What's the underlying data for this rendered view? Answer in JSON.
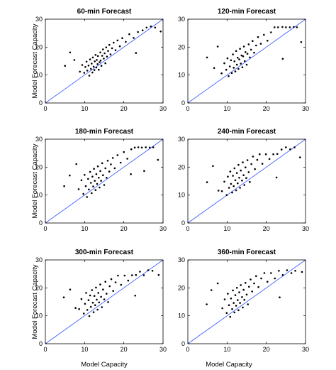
{
  "figure": {
    "ylabel": "Model Forecast Capacity",
    "xlabel": "Model Capacity"
  },
  "chart_data": [
    {
      "type": "scatter",
      "title": "60-min Forecast",
      "xlabel": "",
      "ylabel": "Model Forecast Capacity",
      "xlim": [
        0,
        30
      ],
      "ylim": [
        0,
        30
      ],
      "xticks": [
        "0",
        "10",
        "20",
        "30"
      ],
      "yticks": [
        "0",
        "10",
        "20",
        "30"
      ],
      "reference_line": "y = x",
      "point_color": "#000000",
      "line_color": "#3355ff",
      "points": [
        [
          8.8,
          11.2
        ],
        [
          9.4,
          13.6
        ],
        [
          9.9,
          10.8
        ],
        [
          10.2,
          12.9
        ],
        [
          10.5,
          14.8
        ],
        [
          10.7,
          11.6
        ],
        [
          11.0,
          13.4
        ],
        [
          11.2,
          9.8
        ],
        [
          11.4,
          15.6
        ],
        [
          11.6,
          12.2
        ],
        [
          11.8,
          14.1
        ],
        [
          12.0,
          10.9
        ],
        [
          12.1,
          16.3
        ],
        [
          12.3,
          13.0
        ],
        [
          12.5,
          11.8
        ],
        [
          12.6,
          14.9
        ],
        [
          12.8,
          17.2
        ],
        [
          13.0,
          12.7
        ],
        [
          13.1,
          15.4
        ],
        [
          13.3,
          13.9
        ],
        [
          13.4,
          16.8
        ],
        [
          13.6,
          11.9
        ],
        [
          13.8,
          14.6
        ],
        [
          14.0,
          18.1
        ],
        [
          14.1,
          15.2
        ],
        [
          14.3,
          13.3
        ],
        [
          14.5,
          16.9
        ],
        [
          14.7,
          19.2
        ],
        [
          14.9,
          15.9
        ],
        [
          15.1,
          17.8
        ],
        [
          15.3,
          14.2
        ],
        [
          15.5,
          19.9
        ],
        [
          15.7,
          16.6
        ],
        [
          16.0,
          18.6
        ],
        [
          16.3,
          20.8
        ],
        [
          16.6,
          17.4
        ],
        [
          17.0,
          19.6
        ],
        [
          17.4,
          21.6
        ],
        [
          17.9,
          18.9
        ],
        [
          18.4,
          22.4
        ],
        [
          19.0,
          20.3
        ],
        [
          19.6,
          23.2
        ],
        [
          20.5,
          21.9
        ],
        [
          21.4,
          24.6
        ],
        [
          22.5,
          23.3
        ],
        [
          23.6,
          25.4
        ],
        [
          24.8,
          26.0
        ],
        [
          25.8,
          27.0
        ],
        [
          26.9,
          27.4
        ],
        [
          28.0,
          27.0
        ],
        [
          5.0,
          13.3
        ],
        [
          6.3,
          18.1
        ],
        [
          7.4,
          15.4
        ],
        [
          23.1,
          17.9
        ],
        [
          29.4,
          25.6
        ]
      ]
    },
    {
      "type": "scatter",
      "title": "120-min Forecast",
      "xlabel": "",
      "ylabel": "",
      "xlim": [
        0,
        30
      ],
      "ylim": [
        0,
        30
      ],
      "xticks": [
        "0",
        "10",
        "20",
        "30"
      ],
      "yticks": [
        "0",
        "10",
        "20",
        "30"
      ],
      "reference_line": "y = x",
      "point_color": "#000000",
      "line_color": "#3355ff",
      "points": [
        [
          8.6,
          10.6
        ],
        [
          9.3,
          14.2
        ],
        [
          9.8,
          11.9
        ],
        [
          10.1,
          16.0
        ],
        [
          10.4,
          9.6
        ],
        [
          10.7,
          13.1
        ],
        [
          11.0,
          15.3
        ],
        [
          11.2,
          10.7
        ],
        [
          11.5,
          17.4
        ],
        [
          11.7,
          12.6
        ],
        [
          11.9,
          14.9
        ],
        [
          12.1,
          11.3
        ],
        [
          12.3,
          18.6
        ],
        [
          12.5,
          13.7
        ],
        [
          12.7,
          16.2
        ],
        [
          12.9,
          12.2
        ],
        [
          13.1,
          15.6
        ],
        [
          13.3,
          19.4
        ],
        [
          13.5,
          14.1
        ],
        [
          13.7,
          17.0
        ],
        [
          13.9,
          12.8
        ],
        [
          14.1,
          16.7
        ],
        [
          14.3,
          20.2
        ],
        [
          14.5,
          15.0
        ],
        [
          14.7,
          18.2
        ],
        [
          15.0,
          13.7
        ],
        [
          15.2,
          17.6
        ],
        [
          15.5,
          21.0
        ],
        [
          15.8,
          16.3
        ],
        [
          16.1,
          19.1
        ],
        [
          16.5,
          22.2
        ],
        [
          16.9,
          18.0
        ],
        [
          17.4,
          20.6
        ],
        [
          17.9,
          23.6
        ],
        [
          18.6,
          21.2
        ],
        [
          19.4,
          24.4
        ],
        [
          20.3,
          22.3
        ],
        [
          21.2,
          25.3
        ],
        [
          22.1,
          27.1
        ],
        [
          23.0,
          27.1
        ],
        [
          24.1,
          27.2
        ],
        [
          25.0,
          27.1
        ],
        [
          26.0,
          27.1
        ],
        [
          27.0,
          27.2
        ],
        [
          27.8,
          27.1
        ],
        [
          4.9,
          16.3
        ],
        [
          6.7,
          12.5
        ],
        [
          7.6,
          20.2
        ],
        [
          24.2,
          15.8
        ],
        [
          28.9,
          21.8
        ]
      ]
    },
    {
      "type": "scatter",
      "title": "180-min Forecast",
      "xlabel": "",
      "ylabel": "Model Forecast Capacity",
      "xlim": [
        0,
        30
      ],
      "ylim": [
        0,
        30
      ],
      "xticks": [
        "0",
        "10",
        "20",
        "30"
      ],
      "yticks": [
        "0",
        "10",
        "20",
        "30"
      ],
      "reference_line": "y = x",
      "point_color": "#000000",
      "line_color": "#3355ff",
      "points": [
        [
          8.5,
          12.1
        ],
        [
          9.2,
          15.3
        ],
        [
          9.7,
          10.4
        ],
        [
          10.0,
          17.2
        ],
        [
          10.3,
          13.2
        ],
        [
          10.6,
          9.3
        ],
        [
          10.9,
          15.8
        ],
        [
          11.1,
          12.0
        ],
        [
          11.4,
          18.3
        ],
        [
          11.6,
          14.4
        ],
        [
          11.8,
          10.7
        ],
        [
          12.0,
          16.6
        ],
        [
          12.2,
          13.1
        ],
        [
          12.4,
          19.4
        ],
        [
          12.6,
          15.1
        ],
        [
          12.8,
          11.8
        ],
        [
          13.0,
          17.5
        ],
        [
          13.2,
          14.0
        ],
        [
          13.4,
          20.3
        ],
        [
          13.6,
          16.2
        ],
        [
          13.8,
          12.7
        ],
        [
          14.0,
          18.6
        ],
        [
          14.2,
          15.1
        ],
        [
          14.5,
          21.4
        ],
        [
          14.7,
          17.1
        ],
        [
          15.0,
          13.6
        ],
        [
          15.3,
          19.6
        ],
        [
          15.6,
          16.2
        ],
        [
          15.9,
          22.3
        ],
        [
          16.3,
          18.4
        ],
        [
          16.7,
          21.0
        ],
        [
          17.2,
          23.3
        ],
        [
          17.7,
          19.6
        ],
        [
          18.4,
          24.3
        ],
        [
          19.2,
          21.6
        ],
        [
          20.0,
          25.4
        ],
        [
          20.9,
          23.0
        ],
        [
          21.9,
          26.4
        ],
        [
          22.8,
          27.0
        ],
        [
          23.7,
          27.1
        ],
        [
          24.6,
          27.0
        ],
        [
          25.6,
          27.1
        ],
        [
          26.6,
          27.0
        ],
        [
          27.5,
          27.1
        ],
        [
          4.8,
          13.2
        ],
        [
          6.2,
          17.0
        ],
        [
          7.9,
          21.1
        ],
        [
          21.8,
          17.5
        ],
        [
          25.2,
          18.6
        ],
        [
          28.7,
          22.6
        ]
      ]
    },
    {
      "type": "scatter",
      "title": "240-min Forecast",
      "xlabel": "",
      "ylabel": "",
      "xlim": [
        0,
        30
      ],
      "ylim": [
        0,
        30
      ],
      "xticks": [
        "0",
        "10",
        "20",
        "30"
      ],
      "yticks": [
        "0",
        "10",
        "20",
        "30"
      ],
      "reference_line": "y = x",
      "point_color": "#000000",
      "line_color": "#3355ff",
      "points": [
        [
          8.7,
          11.4
        ],
        [
          9.3,
          14.8
        ],
        [
          9.9,
          10.0
        ],
        [
          10.2,
          16.6
        ],
        [
          10.5,
          12.6
        ],
        [
          10.8,
          18.4
        ],
        [
          11.0,
          14.0
        ],
        [
          11.3,
          10.9
        ],
        [
          11.5,
          16.9
        ],
        [
          11.7,
          13.2
        ],
        [
          11.9,
          19.6
        ],
        [
          12.1,
          15.3
        ],
        [
          12.3,
          11.7
        ],
        [
          12.5,
          17.9
        ],
        [
          12.7,
          14.2
        ],
        [
          12.9,
          20.8
        ],
        [
          13.1,
          16.2
        ],
        [
          13.3,
          12.6
        ],
        [
          13.5,
          18.8
        ],
        [
          13.8,
          15.2
        ],
        [
          14.0,
          21.7
        ],
        [
          14.2,
          17.1
        ],
        [
          14.4,
          13.6
        ],
        [
          14.7,
          19.9
        ],
        [
          14.9,
          16.1
        ],
        [
          15.2,
          22.5
        ],
        [
          15.5,
          18.2
        ],
        [
          15.8,
          14.7
        ],
        [
          16.2,
          21.1
        ],
        [
          16.6,
          23.8
        ],
        [
          17.1,
          19.3
        ],
        [
          17.7,
          22.6
        ],
        [
          18.3,
          24.6
        ],
        [
          19.0,
          21.2
        ],
        [
          19.9,
          24.6
        ],
        [
          20.8,
          22.9
        ],
        [
          21.8,
          24.6
        ],
        [
          22.8,
          24.7
        ],
        [
          23.9,
          26.3
        ],
        [
          25.0,
          27.1
        ],
        [
          26.1,
          26.4
        ],
        [
          27.2,
          27.1
        ],
        [
          4.9,
          14.6
        ],
        [
          6.4,
          20.4
        ],
        [
          7.8,
          11.6
        ],
        [
          22.6,
          16.3
        ],
        [
          28.6,
          23.5
        ]
      ]
    },
    {
      "type": "scatter",
      "title": "300-min Forecast",
      "xlabel": "Model Capacity",
      "ylabel": "Model Forecast Capacity",
      "xlim": [
        0,
        30
      ],
      "ylim": [
        0,
        30
      ],
      "xticks": [
        "0",
        "10",
        "20",
        "30"
      ],
      "yticks": [
        "0",
        "10",
        "20",
        "30"
      ],
      "reference_line": "y = x",
      "point_color": "#000000",
      "line_color": "#3355ff",
      "points": [
        [
          8.6,
          12.4
        ],
        [
          9.2,
          16.0
        ],
        [
          9.8,
          10.8
        ],
        [
          10.1,
          14.3
        ],
        [
          10.4,
          18.2
        ],
        [
          10.7,
          12.1
        ],
        [
          11.0,
          15.6
        ],
        [
          11.2,
          9.9
        ],
        [
          11.4,
          17.3
        ],
        [
          11.6,
          13.2
        ],
        [
          11.9,
          19.2
        ],
        [
          12.1,
          14.7
        ],
        [
          12.3,
          11.3
        ],
        [
          12.5,
          17.1
        ],
        [
          12.7,
          13.8
        ],
        [
          12.9,
          20.1
        ],
        [
          13.1,
          15.8
        ],
        [
          13.3,
          12.2
        ],
        [
          13.5,
          18.2
        ],
        [
          13.7,
          14.8
        ],
        [
          14.0,
          21.2
        ],
        [
          14.2,
          16.8
        ],
        [
          14.4,
          13.1
        ],
        [
          14.7,
          19.4
        ],
        [
          15.0,
          15.9
        ],
        [
          15.3,
          22.2
        ],
        [
          15.6,
          17.9
        ],
        [
          16.0,
          14.9
        ],
        [
          16.4,
          20.6
        ],
        [
          16.8,
          23.1
        ],
        [
          17.3,
          18.9
        ],
        [
          17.9,
          22.0
        ],
        [
          18.5,
          24.4
        ],
        [
          19.3,
          21.1
        ],
        [
          20.2,
          24.4
        ],
        [
          21.1,
          22.6
        ],
        [
          22.1,
          24.5
        ],
        [
          23.1,
          24.6
        ],
        [
          24.1,
          25.8
        ],
        [
          25.1,
          24.5
        ],
        [
          26.2,
          26.3
        ],
        [
          27.3,
          26.1
        ],
        [
          4.7,
          16.6
        ],
        [
          6.3,
          19.4
        ],
        [
          7.7,
          12.8
        ],
        [
          22.9,
          17.2
        ],
        [
          28.9,
          24.6
        ]
      ]
    },
    {
      "type": "scatter",
      "title": "360-min Forecast",
      "xlabel": "Model Capacity",
      "ylabel": "",
      "xlim": [
        0,
        30
      ],
      "ylim": [
        0,
        30
      ],
      "xticks": [
        "0",
        "10",
        "20",
        "30"
      ],
      "yticks": [
        "0",
        "10",
        "20",
        "30"
      ],
      "reference_line": "y = x",
      "point_color": "#000000",
      "line_color": "#3355ff",
      "points": [
        [
          8.8,
          12.7
        ],
        [
          9.4,
          15.9
        ],
        [
          9.9,
          11.0
        ],
        [
          10.2,
          17.9
        ],
        [
          10.5,
          13.8
        ],
        [
          10.8,
          9.6
        ],
        [
          11.0,
          16.2
        ],
        [
          11.3,
          12.4
        ],
        [
          11.5,
          19.1
        ],
        [
          11.7,
          14.6
        ],
        [
          11.9,
          11.2
        ],
        [
          12.1,
          17.4
        ],
        [
          12.3,
          13.6
        ],
        [
          12.5,
          20.0
        ],
        [
          12.7,
          15.6
        ],
        [
          12.9,
          12.0
        ],
        [
          13.1,
          18.4
        ],
        [
          13.3,
          14.6
        ],
        [
          13.5,
          21.0
        ],
        [
          13.8,
          16.7
        ],
        [
          14.0,
          13.0
        ],
        [
          14.2,
          19.3
        ],
        [
          14.4,
          15.7
        ],
        [
          14.7,
          21.8
        ],
        [
          15.0,
          17.6
        ],
        [
          15.3,
          14.1
        ],
        [
          15.6,
          20.4
        ],
        [
          16.0,
          23.0
        ],
        [
          16.4,
          18.7
        ],
        [
          16.9,
          21.6
        ],
        [
          17.4,
          24.2
        ],
        [
          18.0,
          20.3
        ],
        [
          18.7,
          23.4
        ],
        [
          19.5,
          25.3
        ],
        [
          20.3,
          22.2
        ],
        [
          21.2,
          25.3
        ],
        [
          22.2,
          23.4
        ],
        [
          23.2,
          26.1
        ],
        [
          24.2,
          24.6
        ],
        [
          25.3,
          26.3
        ],
        [
          26.4,
          25.3
        ],
        [
          27.4,
          26.1
        ],
        [
          4.8,
          14.1
        ],
        [
          6.0,
          19.2
        ],
        [
          7.6,
          21.6
        ],
        [
          23.4,
          16.6
        ],
        [
          29.1,
          25.7
        ]
      ]
    }
  ]
}
